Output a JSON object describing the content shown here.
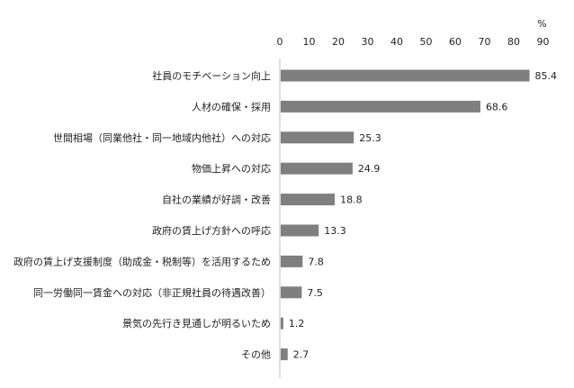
{
  "chart_data": {
    "type": "bar",
    "orientation": "horizontal",
    "unit": "%",
    "xlim": [
      0,
      90
    ],
    "ticks": [
      0,
      10,
      20,
      30,
      40,
      50,
      60,
      70,
      80,
      90
    ],
    "grid": false,
    "legend": "none",
    "bar_color": "#7f7f7f",
    "categories": [
      "社員のモチベーション向上",
      "人材の確保・採用",
      "世間相場（同業他社・同一地域内他社）への対応",
      "物価上昇への対応",
      "自社の業績が好調・改善",
      "政府の賃上げ方針への呼応",
      "政府の賃上げ支援制度（助成金・税制等）を活用するため",
      "同一労働同一賃金への対応（非正規社員の待遇改善）",
      "景気の先行き見通しが明るいため",
      "その他"
    ],
    "values": [
      85.4,
      68.6,
      25.3,
      24.9,
      18.8,
      13.3,
      7.8,
      7.5,
      1.2,
      2.7
    ],
    "value_labels": [
      "85.4",
      "68.6",
      "25.3",
      "24.9",
      "18.8",
      "13.3",
      "7.8",
      "7.5",
      "1.2",
      "2.7"
    ]
  }
}
